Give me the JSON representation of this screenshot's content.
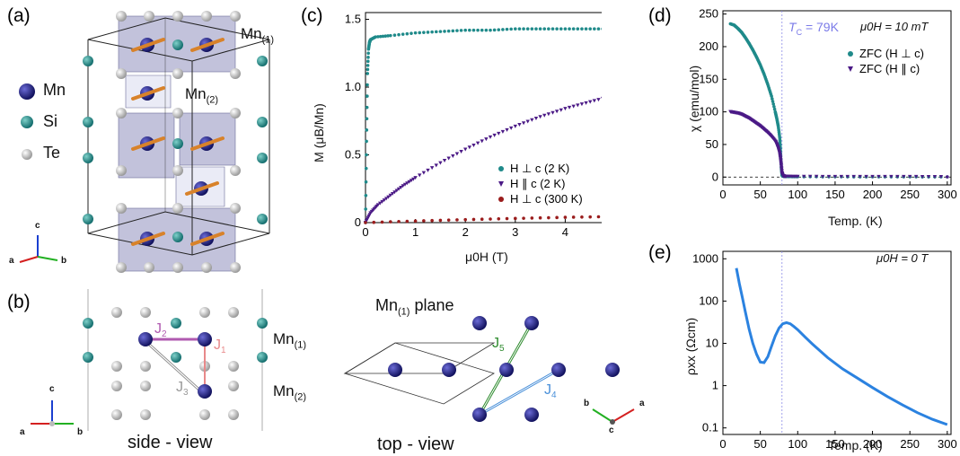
{
  "panels": {
    "a": "(a)",
    "b": "(b)",
    "c": "(c)",
    "d": "(d)",
    "e": "(e)"
  },
  "panel_a": {
    "legend": [
      "Mn",
      "Si",
      "Te"
    ],
    "mn1_label": "Mn",
    "mn1_sub": "(1)",
    "mn2_label": "Mn",
    "mn2_sub": "(2)",
    "axes": {
      "c": "c",
      "a": "a",
      "b": "b"
    }
  },
  "panel_b": {
    "side_view": "side - view",
    "top_view": "top - view",
    "plane_label": "Mn",
    "plane_sub": "(1)",
    "plane_word": " plane",
    "mn1_label": "Mn",
    "mn1_sub": "(1)",
    "mn2_label": "Mn",
    "mn2_sub": "(2)",
    "j_labels": {
      "j1": "J",
      "j1s": "1",
      "j2": "J",
      "j2s": "2",
      "j3": "J",
      "j3s": "3",
      "j4": "J",
      "j4s": "4",
      "j5": "J",
      "j5s": "5"
    },
    "axes_side": {
      "c": "c",
      "a": "a",
      "b": "b"
    },
    "axes_top": {
      "a": "a",
      "b": "b",
      "c": "c"
    },
    "colors": {
      "mn": "#1a1a7a",
      "si": "#1f8a8a",
      "te": "#c8c8c8",
      "j1": "#e8898a",
      "j2": "#b05ab0",
      "j3": "#999999",
      "j4": "#4a90d9",
      "j5": "#2e8b2e"
    }
  },
  "chart_data": [
    {
      "type": "scatter",
      "panel": "c",
      "ylabel": "M (μB/Mn)",
      "xlabel": "μ0H (T)",
      "xlim": [
        0,
        5
      ],
      "ylim": [
        0,
        1.55
      ],
      "xticks": [
        "0",
        "1",
        "2",
        "3",
        "4",
        "5"
      ],
      "yticks": [
        "0",
        "0.5",
        "1.0",
        "1.5"
      ],
      "grid": false,
      "legend_position": "center-right",
      "series": [
        {
          "name": "H ⊥ c (2 K)",
          "color": "#1f8a8a",
          "x": [
            0.0,
            0.02,
            0.04,
            0.06,
            0.08,
            0.1,
            0.2,
            0.5,
            1.0,
            1.5,
            2.0,
            2.5,
            3.0,
            3.5,
            4.0,
            4.5,
            5.0
          ],
          "y": [
            0.0,
            0.6,
            1.1,
            1.28,
            1.33,
            1.35,
            1.37,
            1.38,
            1.4,
            1.41,
            1.42,
            1.42,
            1.43,
            1.43,
            1.43,
            1.43,
            1.43
          ]
        },
        {
          "name": "H ∥ c (2 K)",
          "color": "#4b1a86",
          "x": [
            0.0,
            0.1,
            0.25,
            0.5,
            0.75,
            1.0,
            1.5,
            2.0,
            2.5,
            3.0,
            3.5,
            4.0,
            4.5,
            5.0
          ],
          "y": [
            0.0,
            0.07,
            0.13,
            0.2,
            0.27,
            0.33,
            0.44,
            0.54,
            0.63,
            0.71,
            0.78,
            0.84,
            0.89,
            0.94
          ]
        },
        {
          "name": "H ⊥ c (300 K)",
          "color": "#9a1c1c",
          "x": [
            0.0,
            1.0,
            2.0,
            3.0,
            4.0,
            5.0
          ],
          "y": [
            0.0,
            0.012,
            0.022,
            0.031,
            0.039,
            0.045
          ]
        }
      ]
    },
    {
      "type": "scatter",
      "panel": "d",
      "ylabel": "χ (emu/mol)",
      "xlabel": "Temp. (K)",
      "xlim": [
        0,
        305
      ],
      "ylim": [
        -12,
        255
      ],
      "xticks": [
        "0",
        "50",
        "100",
        "150",
        "200",
        "250",
        "300"
      ],
      "yticks": [
        "0",
        "50",
        "100",
        "150",
        "200",
        "250"
      ],
      "tc_label": "T",
      "tc_sub": "C",
      "tc_value": " = 79K",
      "tc": 79,
      "field_label": "μ0H = 10 mT",
      "grid": false,
      "legend_position": "top-right",
      "series": [
        {
          "name": "ZFC (H ⊥ c)",
          "color": "#1f8a8a",
          "x": [
            10,
            15,
            20,
            25,
            30,
            35,
            40,
            45,
            50,
            55,
            60,
            65,
            70,
            72,
            74,
            76,
            77,
            78,
            79,
            80,
            82,
            85,
            100,
            150,
            200,
            250,
            300
          ],
          "y": [
            235,
            233,
            228,
            222,
            214,
            205,
            195,
            184,
            172,
            158,
            142,
            124,
            100,
            90,
            78,
            60,
            40,
            15,
            3,
            1.5,
            1.0,
            0.8,
            0.6,
            0.5,
            0.4,
            0.4,
            0.3
          ]
        },
        {
          "name": "ZFC (H ∥ c)",
          "color": "#4b1a86",
          "x": [
            10,
            15,
            20,
            25,
            30,
            35,
            40,
            45,
            50,
            55,
            60,
            65,
            70,
            72,
            74,
            76,
            77,
            78,
            79,
            80,
            82,
            85,
            100,
            150,
            200,
            250,
            300
          ],
          "y": [
            100,
            99,
            98,
            96,
            93,
            90,
            86,
            82,
            78,
            73,
            68,
            62,
            55,
            50,
            44,
            36,
            28,
            18,
            6,
            2,
            1.2,
            0.9,
            0.7,
            0.6,
            0.5,
            0.5,
            0.4
          ]
        }
      ]
    },
    {
      "type": "line",
      "panel": "e",
      "ylabel": "ρxx (Ωcm)",
      "xlabel": "Temp. (K)",
      "yscale": "log",
      "xlim": [
        0,
        305
      ],
      "ylim": [
        0.07,
        1500
      ],
      "xticks": [
        "0",
        "50",
        "100",
        "150",
        "200",
        "250",
        "300"
      ],
      "yticks": [
        "0.1",
        "1",
        "10",
        "100",
        "1000"
      ],
      "field_label": "μ0H = 0 T",
      "tc": 79,
      "grid": false,
      "series": [
        {
          "name": "",
          "color": "#2b82e0",
          "x": [
            18,
            22,
            26,
            30,
            35,
            40,
            45,
            50,
            55,
            60,
            65,
            70,
            75,
            80,
            85,
            90,
            95,
            100,
            110,
            120,
            140,
            160,
            180,
            200,
            220,
            240,
            260,
            280,
            300
          ],
          "y": [
            600,
            260,
            120,
            55,
            22,
            10,
            5.5,
            3.6,
            3.5,
            4.8,
            8.5,
            15,
            23,
            29,
            31,
            29,
            25,
            21,
            14,
            9.5,
            4.6,
            2.5,
            1.5,
            0.9,
            0.55,
            0.35,
            0.23,
            0.16,
            0.12
          ]
        }
      ]
    }
  ]
}
